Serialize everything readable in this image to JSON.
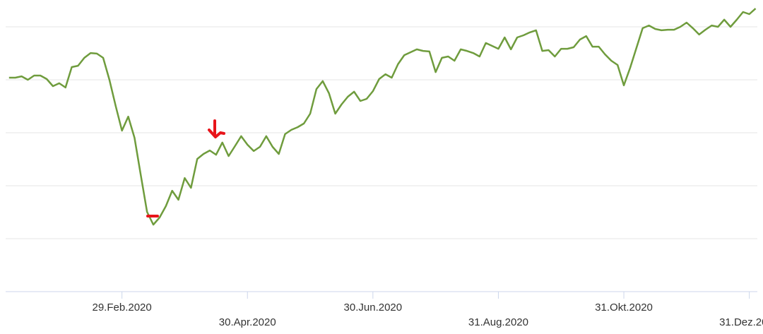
{
  "chart_data": {
    "type": "line",
    "color": "#6f9c3d",
    "ylim": [
      0,
      110
    ],
    "categories": [
      null,
      null,
      null,
      null,
      null,
      null,
      null,
      null,
      null,
      null,
      null,
      null,
      null,
      null,
      null,
      null,
      null,
      null,
      "29.Feb.2020",
      null,
      null,
      null,
      null,
      null,
      null,
      null,
      null,
      null,
      null,
      null,
      null,
      null,
      null,
      null,
      null,
      null,
      null,
      null,
      "30.Apr.2020",
      null,
      null,
      null,
      null,
      null,
      null,
      null,
      null,
      null,
      null,
      null,
      null,
      null,
      null,
      null,
      null,
      null,
      null,
      null,
      "30.Jun.2020",
      null,
      null,
      null,
      null,
      null,
      null,
      null,
      null,
      null,
      null,
      null,
      null,
      null,
      null,
      null,
      null,
      null,
      null,
      null,
      "31.Aug.2020",
      null,
      null,
      null,
      null,
      null,
      null,
      null,
      null,
      null,
      null,
      null,
      null,
      null,
      null,
      null,
      null,
      null,
      null,
      null,
      "31.Okt.2020",
      null,
      null,
      null,
      null,
      null,
      null,
      null,
      null,
      null,
      null,
      null,
      null,
      null,
      null,
      null,
      null,
      null,
      null,
      null,
      "31.Dez.2020",
      null
    ],
    "values": [
      80.8,
      80.8,
      81.3,
      80.0,
      81.6,
      81.6,
      80.3,
      77.6,
      78.7,
      77.1,
      84.8,
      85.3,
      88.3,
      90.1,
      89.9,
      88.3,
      80.0,
      70.1,
      60.8,
      66.1,
      58.1,
      44.0,
      30.1,
      25.3,
      28.0,
      32.3,
      38.1,
      34.7,
      42.9,
      39.2,
      50.1,
      52.0,
      53.3,
      51.7,
      56.3,
      51.2,
      54.9,
      58.7,
      55.5,
      53.1,
      54.7,
      58.7,
      54.7,
      52.0,
      59.5,
      61.1,
      62.1,
      63.5,
      67.2,
      76.5,
      79.5,
      74.9,
      67.2,
      70.7,
      73.6,
      75.5,
      72.0,
      72.8,
      75.7,
      80.3,
      82.1,
      80.8,
      85.9,
      89.3,
      90.4,
      91.5,
      90.9,
      90.7,
      82.9,
      88.3,
      88.8,
      87.2,
      91.5,
      90.9,
      90.1,
      88.8,
      93.9,
      92.8,
      91.7,
      96.0,
      91.5,
      96.0,
      96.8,
      97.9,
      98.7,
      90.9,
      91.2,
      88.8,
      91.7,
      91.7,
      92.3,
      95.2,
      96.5,
      92.5,
      92.5,
      89.6,
      87.2,
      85.6,
      77.9,
      84.5,
      92.0,
      99.5,
      100.5,
      99.2,
      98.7,
      98.9,
      98.9,
      100.0,
      101.6,
      99.5,
      97.1,
      98.9,
      100.5,
      100.0,
      102.7,
      100.0,
      102.7,
      105.6,
      104.8,
      106.9
    ]
  }
}
